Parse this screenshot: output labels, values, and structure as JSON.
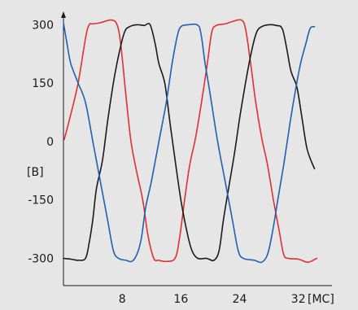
{
  "chart_data": {
    "type": "line",
    "xlabel": "[MC]",
    "ylabel": "[B]",
    "xlim": [
      0,
      36.8
    ],
    "ylim": [
      -370,
      330
    ],
    "x_ticks": [
      8,
      16,
      24,
      32
    ],
    "y_ticks": [
      300,
      150,
      0,
      -150,
      -300
    ],
    "grid": false,
    "series": [
      {
        "color": "#e03030",
        "points": [
          [
            0.1,
            5
          ],
          [
            1,
            70
          ],
          [
            2,
            150
          ],
          [
            3,
            265
          ],
          [
            3.5,
            300
          ],
          [
            4,
            302
          ],
          [
            5,
            305
          ],
          [
            6.5,
            312
          ],
          [
            7.3,
            300
          ],
          [
            7.8,
            250
          ],
          [
            8.5,
            120
          ],
          [
            9.2,
            0
          ],
          [
            10,
            -80
          ],
          [
            10.8,
            -150
          ],
          [
            11.5,
            -240
          ],
          [
            12.3,
            -300
          ],
          [
            13,
            -305
          ],
          [
            14,
            -308
          ],
          [
            15.2,
            -300
          ],
          [
            15.8,
            -250
          ],
          [
            16.5,
            -150
          ],
          [
            17.2,
            -60
          ],
          [
            18,
            10
          ],
          [
            18.8,
            100
          ],
          [
            19.6,
            200
          ],
          [
            20.2,
            280
          ],
          [
            20.8,
            298
          ],
          [
            22,
            302
          ],
          [
            23,
            308
          ],
          [
            24.2,
            312
          ],
          [
            24.8,
            290
          ],
          [
            25.5,
            200
          ],
          [
            26.2,
            100
          ],
          [
            27,
            10
          ],
          [
            27.8,
            -60
          ],
          [
            28.6,
            -150
          ],
          [
            29.4,
            -230
          ],
          [
            30,
            -290
          ],
          [
            30.6,
            -300
          ],
          [
            32,
            -302
          ],
          [
            33.3,
            -310
          ],
          [
            34.5,
            -300
          ]
        ]
      },
      {
        "color": "#1a1a1a",
        "points": [
          [
            0,
            -300
          ],
          [
            1,
            -302
          ],
          [
            2,
            -305
          ],
          [
            3,
            -300
          ],
          [
            3.5,
            -260
          ],
          [
            4,
            -200
          ],
          [
            4.5,
            -120
          ],
          [
            5.3,
            -50
          ],
          [
            6,
            50
          ],
          [
            6.8,
            150
          ],
          [
            7.5,
            220
          ],
          [
            8.3,
            280
          ],
          [
            9,
            295
          ],
          [
            10,
            300
          ],
          [
            11,
            298
          ],
          [
            11.8,
            300
          ],
          [
            12.5,
            250
          ],
          [
            13,
            200
          ],
          [
            13.8,
            150
          ],
          [
            14.5,
            50
          ],
          [
            15.3,
            -60
          ],
          [
            16,
            -150
          ],
          [
            16.8,
            -230
          ],
          [
            17.5,
            -280
          ],
          [
            18.3,
            -300
          ],
          [
            19.5,
            -300
          ],
          [
            20.5,
            -305
          ],
          [
            21.2,
            -280
          ],
          [
            21.8,
            -200
          ],
          [
            22.5,
            -120
          ],
          [
            23.3,
            -30
          ],
          [
            24,
            60
          ],
          [
            24.8,
            150
          ],
          [
            25.6,
            230
          ],
          [
            26.3,
            280
          ],
          [
            27,
            295
          ],
          [
            28,
            300
          ],
          [
            29,
            298
          ],
          [
            29.8,
            290
          ],
          [
            30.4,
            240
          ],
          [
            31,
            180
          ],
          [
            31.8,
            140
          ],
          [
            32.5,
            60
          ],
          [
            33.2,
            -20
          ],
          [
            34.2,
            -70
          ]
        ]
      },
      {
        "color": "#2060b0",
        "points": [
          [
            0,
            305
          ],
          [
            0.5,
            250
          ],
          [
            1,
            200
          ],
          [
            2,
            150
          ],
          [
            3,
            100
          ],
          [
            4,
            0
          ],
          [
            5,
            -100
          ],
          [
            6,
            -200
          ],
          [
            6.8,
            -280
          ],
          [
            7.5,
            -300
          ],
          [
            8.5,
            -305
          ],
          [
            9.3,
            -308
          ],
          [
            10,
            -290
          ],
          [
            10.6,
            -250
          ],
          [
            11.2,
            -170
          ],
          [
            12,
            -100
          ],
          [
            13,
            0
          ],
          [
            14,
            100
          ],
          [
            14.8,
            200
          ],
          [
            15.5,
            270
          ],
          [
            16,
            295
          ],
          [
            17,
            300
          ],
          [
            18.2,
            300
          ],
          [
            18.7,
            280
          ],
          [
            19.3,
            200
          ],
          [
            20,
            120
          ],
          [
            21,
            0
          ],
          [
            22,
            -100
          ],
          [
            23,
            -200
          ],
          [
            23.8,
            -280
          ],
          [
            24.5,
            -300
          ],
          [
            26,
            -305
          ],
          [
            27,
            -310
          ],
          [
            27.8,
            -290
          ],
          [
            28.5,
            -230
          ],
          [
            29.2,
            -150
          ],
          [
            30,
            -60
          ],
          [
            30.8,
            40
          ],
          [
            31.5,
            120
          ],
          [
            32.3,
            200
          ],
          [
            33,
            250
          ],
          [
            33.6,
            290
          ],
          [
            34.2,
            295
          ]
        ]
      }
    ]
  }
}
